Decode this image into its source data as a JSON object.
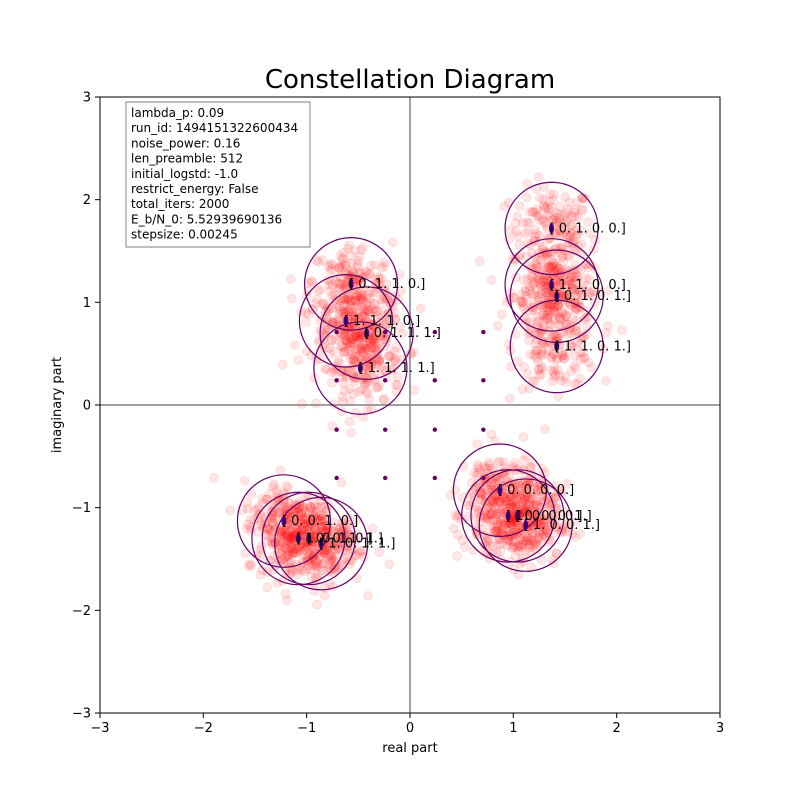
{
  "chart_data": {
    "type": "scatter",
    "title": "Constellation Diagram",
    "xlabel": "real part",
    "ylabel": "imaginary part",
    "xlim": [
      -3,
      3
    ],
    "ylim": [
      -3,
      3
    ],
    "xticks": [
      "−3",
      "−2",
      "−1",
      "0",
      "1",
      "2",
      "3"
    ],
    "yticks": [
      "−3",
      "−2",
      "−1",
      "0",
      "1",
      "2",
      "3"
    ],
    "grid": false,
    "colors": {
      "noise_points": "#ff0000",
      "constellation_points": "#4b0082",
      "circles": "#660066",
      "reference_points": "#660066",
      "zero_axes": "#808080"
    },
    "info_box": {
      "placement": "top-left",
      "lines": [
        "lambda_p: 0.09",
        "run_id: 1494151322600434",
        "noise_power: 0.16",
        "len_preamble: 512",
        "initial_logstd: -1.0",
        "restrict_energy: False",
        "total_iters: 2000",
        "E_b/N_0: 5.52939690136",
        "stepsize: 0.00245"
      ]
    },
    "noise_std": 0.2,
    "constellation": [
      {
        "label": "[ 0.  1.  0.  0.]",
        "x": 1.37,
        "y": 1.72
      },
      {
        "label": "[ 1.  1.  0.  0.]",
        "x": 1.37,
        "y": 1.17
      },
      {
        "label": "[ 0.  1.  0.  1.]",
        "x": 1.42,
        "y": 1.06
      },
      {
        "label": "[ 1.  1.  0.  1.]",
        "x": 1.42,
        "y": 0.57
      },
      {
        "label": "[ 0.  1.  1.  0.]",
        "x": -0.57,
        "y": 1.18
      },
      {
        "label": "[ 1.  1.  1.  0.]",
        "x": -0.62,
        "y": 0.82
      },
      {
        "label": "[ 0.  1.  1.  1.]",
        "x": -0.42,
        "y": 0.7
      },
      {
        "label": "[ 1.  1.  1.  1.]",
        "x": -0.48,
        "y": 0.36
      },
      {
        "label": "[ 0.  0.  0.  0.]",
        "x": 0.87,
        "y": -0.83
      },
      {
        "label": "[ 1.  0.  0.  0.]",
        "x": 0.95,
        "y": -1.08
      },
      {
        "label": "[ 0.  0.  0.  1.]",
        "x": 1.04,
        "y": -1.08
      },
      {
        "label": "[ 1.  0.  0.  1.]",
        "x": 1.12,
        "y": -1.17
      },
      {
        "label": "[ 0.  0.  1.  0.]",
        "x": -1.22,
        "y": -1.13
      },
      {
        "label": "[ 1.  0.  1.  0.]",
        "x": -1.08,
        "y": -1.3
      },
      {
        "label": "[ 0.  0.  1.  1.]",
        "x": -0.98,
        "y": -1.3
      },
      {
        "label": "[ 1.  0.  1.  1.]",
        "x": -0.86,
        "y": -1.35
      }
    ],
    "reference_points": [
      {
        "x": -0.71,
        "y": 0.71
      },
      {
        "x": -0.24,
        "y": 0.71
      },
      {
        "x": 0.24,
        "y": 0.71
      },
      {
        "x": 0.71,
        "y": 0.71
      },
      {
        "x": -0.71,
        "y": 0.24
      },
      {
        "x": -0.24,
        "y": 0.24
      },
      {
        "x": 0.24,
        "y": 0.24
      },
      {
        "x": 0.71,
        "y": 0.24
      },
      {
        "x": -0.71,
        "y": -0.24
      },
      {
        "x": -0.24,
        "y": -0.24
      },
      {
        "x": 0.24,
        "y": -0.24
      },
      {
        "x": 0.71,
        "y": -0.24
      },
      {
        "x": -0.71,
        "y": -0.71
      },
      {
        "x": -0.24,
        "y": -0.71
      },
      {
        "x": 0.24,
        "y": -0.71
      },
      {
        "x": 0.71,
        "y": -0.71
      }
    ]
  }
}
